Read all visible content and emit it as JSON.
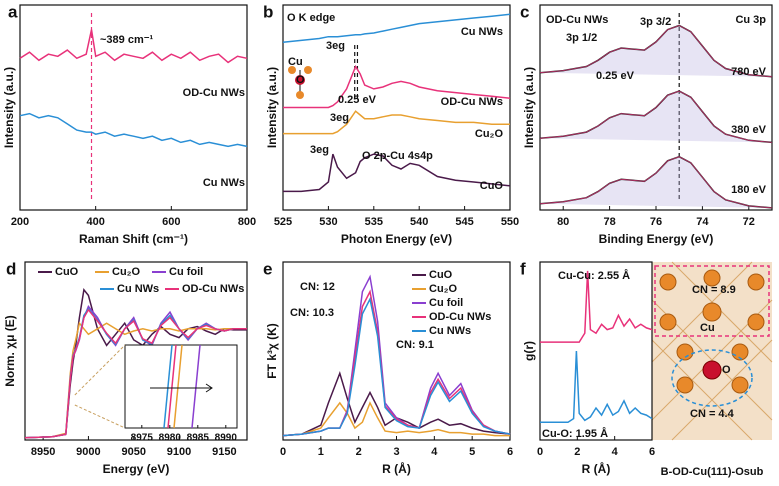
{
  "chart_data": [
    {
      "type": "line",
      "label": "a",
      "xlabel": "Raman Shift (cm⁻¹)",
      "ylabel": "Intensity (a.u.)",
      "xlim": [
        200,
        800
      ],
      "xticks": [
        200,
        400,
        600,
        800
      ],
      "ylim": [
        0,
        10
      ],
      "x": [
        200,
        225,
        250,
        275,
        300,
        325,
        350,
        375,
        389,
        400,
        425,
        450,
        475,
        500,
        525,
        550,
        575,
        600,
        625,
        650,
        675,
        700,
        725,
        750,
        775,
        800
      ],
      "vlines": [
        389
      ],
      "annotations": [
        "~389 cm⁻¹"
      ],
      "series": [
        {
          "name": "OD-Cu NWs",
          "color": "#e8327a",
          "values": [
            7.4,
            7.7,
            7.3,
            7.6,
            7.5,
            7.8,
            7.4,
            7.6,
            8.8,
            7.5,
            7.7,
            7.3,
            7.6,
            7.5,
            7.4,
            7.7,
            7.3,
            7.6,
            7.4,
            7.7,
            7.3,
            7.5,
            7.6,
            7.2,
            7.5,
            7.4
          ]
        },
        {
          "name": "Cu NWs",
          "color": "#2a8fd6",
          "values": [
            4.6,
            4.7,
            4.5,
            4.6,
            4.5,
            4.2,
            3.9,
            3.8,
            3.8,
            3.7,
            3.8,
            3.6,
            3.7,
            3.6,
            3.5,
            3.6,
            3.4,
            3.5,
            3.3,
            3.4,
            3.2,
            3.3,
            3.2,
            3.1,
            3.2,
            3.1
          ]
        }
      ]
    },
    {
      "type": "line",
      "label": "b",
      "xlabel": "Photon Energy (eV)",
      "ylabel": "Intensity (a.u.)",
      "xlim": [
        525,
        550
      ],
      "xticks": [
        525,
        530,
        535,
        540,
        545,
        550
      ],
      "ylim": [
        0,
        11
      ],
      "x": [
        525,
        527,
        529,
        530,
        530.5,
        531,
        532,
        533,
        533.5,
        534,
        535,
        536,
        537,
        538,
        539,
        540,
        542,
        544,
        546,
        548,
        550
      ],
      "vlines": [
        532.9,
        533.2
      ],
      "annotations": [
        "O K edge",
        "3eg",
        "0.25 eV",
        "3eg",
        "3eg",
        "O 2p-Cu 4s4p",
        "Cu",
        "O"
      ],
      "series": [
        {
          "name": "CuO",
          "color": "#4a1a4a",
          "values": [
            1.0,
            1.0,
            1.1,
            1.5,
            3.0,
            2.3,
            1.7,
            2.0,
            2.6,
            2.8,
            3.0,
            2.9,
            2.4,
            2.2,
            2.5,
            2.4,
            1.8,
            1.6,
            1.5,
            1.4,
            1.3
          ]
        },
        {
          "name": "Cu₂O",
          "color": "#e8a030",
          "values": [
            4.1,
            4.1,
            4.1,
            4.1,
            4.1,
            4.2,
            4.6,
            5.3,
            5.1,
            4.9,
            4.9,
            5.0,
            5.1,
            5.1,
            5.0,
            4.9,
            4.8,
            4.7,
            4.7,
            4.6,
            4.6
          ]
        },
        {
          "name": "OD-Cu NWs",
          "color": "#e8327a",
          "values": [
            5.5,
            5.5,
            5.5,
            5.5,
            5.6,
            5.8,
            6.5,
            7.7,
            7.3,
            6.7,
            6.5,
            6.6,
            6.8,
            6.9,
            6.8,
            6.6,
            6.4,
            6.3,
            6.2,
            6.1,
            6.0
          ]
        },
        {
          "name": "Cu NWs",
          "color": "#2a8fd6",
          "values": [
            9.0,
            9.1,
            9.2,
            9.3,
            9.3,
            9.3,
            9.35,
            9.4,
            9.4,
            9.45,
            9.5,
            9.6,
            9.7,
            9.8,
            9.9,
            10.0,
            10.1,
            10.2,
            10.3,
            10.4,
            10.5
          ]
        }
      ]
    },
    {
      "type": "line",
      "label": "c",
      "xlabel": "Binding Energy (eV)",
      "ylabel": "Intensity (a.u.)",
      "xlim": [
        81,
        71
      ],
      "xticks": [
        80,
        78,
        76,
        74,
        72
      ],
      "ylim": [
        0,
        10
      ],
      "x": [
        81,
        80,
        79,
        78.5,
        78,
        77.5,
        77,
        76.5,
        76,
        75.5,
        75,
        74.5,
        74,
        73.5,
        73,
        72,
        71
      ],
      "vlines": [
        75
      ],
      "annotations": [
        "OD-Cu NWs",
        "Cu 3p",
        "3p 1/2",
        "3p 3/2",
        "0.25 eV"
      ],
      "series": [
        {
          "name": "780 eV",
          "color": "#222222",
          "values": [
            6.7,
            6.8,
            7.0,
            7.3,
            7.7,
            7.9,
            7.85,
            7.8,
            8.2,
            8.8,
            9.0,
            8.7,
            8.0,
            7.3,
            6.9,
            6.6,
            6.5
          ]
        },
        {
          "name": "380 eV",
          "color": "#222222",
          "values": [
            3.5,
            3.6,
            3.8,
            4.1,
            4.5,
            4.7,
            4.65,
            4.6,
            5.0,
            5.6,
            5.8,
            5.5,
            4.8,
            4.1,
            3.7,
            3.4,
            3.3
          ]
        },
        {
          "name": "180 eV",
          "color": "#222222",
          "values": [
            0.3,
            0.4,
            0.6,
            0.9,
            1.3,
            1.5,
            1.45,
            1.4,
            1.8,
            2.4,
            2.6,
            2.3,
            1.6,
            0.9,
            0.5,
            0.2,
            0.1
          ]
        }
      ]
    },
    {
      "type": "line",
      "label": "d",
      "xlabel": "Energy (eV)",
      "ylabel": "Norm. χμ (E)",
      "xlim": [
        8930,
        9175
      ],
      "xticks": [
        8950,
        9000,
        9050,
        9100,
        9150
      ],
      "ylim": [
        0,
        1.6
      ],
      "x": [
        8930,
        8960,
        8975,
        8980,
        8983,
        8986,
        8990,
        8995,
        9000,
        9010,
        9020,
        9030,
        9040,
        9050,
        9060,
        9070,
        9080,
        9090,
        9100,
        9110,
        9120,
        9130,
        9140,
        9150,
        9160,
        9175
      ],
      "inset": {
        "xlim": [
          8972,
          8992
        ],
        "xticks": [
          8975,
          8980,
          8985,
          8990
        ]
      },
      "series": [
        {
          "name": "CuO",
          "color": "#4a1a4a",
          "values": [
            0.02,
            0.03,
            0.05,
            0.5,
            0.7,
            0.85,
            1.1,
            1.35,
            1.3,
            1.0,
            0.85,
            0.95,
            1.05,
            0.9,
            0.85,
            0.95,
            1.02,
            0.95,
            0.92,
            1.0,
            1.02,
            0.98,
            0.95,
            1.0,
            0.99,
            0.99
          ]
        },
        {
          "name": "Cu₂O",
          "color": "#e8a030",
          "values": [
            0.02,
            0.03,
            0.06,
            0.6,
            0.8,
            0.9,
            1.05,
            1.0,
            0.95,
            1.0,
            1.05,
            1.0,
            0.95,
            0.98,
            1.0,
            0.98,
            1.0,
            1.0,
            0.98,
            1.0,
            1.0,
            1.0,
            0.99,
            1.0,
            1.0,
            1.0
          ]
        },
        {
          "name": "Cu foil",
          "color": "#8a3fd0",
          "values": [
            0.02,
            0.03,
            0.05,
            0.55,
            0.75,
            0.8,
            0.9,
            1.1,
            1.2,
            1.1,
            0.95,
            0.85,
            1.0,
            1.1,
            0.9,
            0.85,
            1.05,
            1.15,
            1.0,
            0.9,
            1.0,
            1.05,
            1.0,
            0.98,
            1.0,
            1.0
          ]
        },
        {
          "name": "Cu NWs",
          "color": "#2a8fd6",
          "values": [
            0.02,
            0.03,
            0.05,
            0.56,
            0.76,
            0.82,
            0.92,
            1.12,
            1.18,
            1.08,
            0.95,
            0.86,
            1.0,
            1.08,
            0.9,
            0.86,
            1.04,
            1.12,
            1.0,
            0.91,
            1.0,
            1.04,
            1.0,
            0.98,
            1.0,
            1.0
          ]
        },
        {
          "name": "OD-Cu NWs",
          "color": "#e8327a",
          "values": [
            0.02,
            0.03,
            0.05,
            0.55,
            0.75,
            0.81,
            0.91,
            1.1,
            1.17,
            1.07,
            0.96,
            0.87,
            1.0,
            1.07,
            0.91,
            0.87,
            1.03,
            1.1,
            1.0,
            0.92,
            1.0,
            1.03,
            1.0,
            0.98,
            1.0,
            1.0
          ]
        }
      ]
    },
    {
      "type": "line",
      "label": "e",
      "xlabel": "R (Å)",
      "ylabel": "FT k³χ (K)",
      "xlim": [
        0,
        6
      ],
      "xticks": [
        0,
        1,
        2,
        3,
        4,
        5,
        6
      ],
      "ylim": [
        0,
        12
      ],
      "x": [
        0,
        0.5,
        1.0,
        1.2,
        1.5,
        1.7,
        1.9,
        2.1,
        2.3,
        2.5,
        2.7,
        3.0,
        3.3,
        3.6,
        3.9,
        4.1,
        4.4,
        4.7,
        5.0,
        5.3,
        5.6,
        6
      ],
      "annotations": [
        "CN: 12",
        "CN: 10.3",
        "CN: 9.1"
      ],
      "series": [
        {
          "name": "CuO",
          "color": "#4a1a4a",
          "values": [
            0.3,
            0.4,
            1.0,
            2.5,
            4.5,
            2.8,
            1.2,
            2.2,
            3.2,
            2.2,
            1.0,
            1.5,
            1.2,
            0.8,
            1.2,
            1.4,
            1.0,
            1.1,
            0.8,
            0.6,
            0.5,
            0.4
          ]
        },
        {
          "name": "Cu₂O",
          "color": "#e8a030",
          "values": [
            0.3,
            0.4,
            0.8,
            1.5,
            2.5,
            1.8,
            0.8,
            1.2,
            2.5,
            1.5,
            0.6,
            0.5,
            0.6,
            0.5,
            0.6,
            0.7,
            0.5,
            0.5,
            0.4,
            0.4,
            0.3,
            0.3
          ]
        },
        {
          "name": "Cu foil",
          "color": "#8a3fd0",
          "values": [
            0.3,
            0.4,
            0.6,
            0.8,
            0.8,
            2.0,
            6.0,
            10.0,
            11.0,
            8.0,
            2.5,
            1.5,
            1.0,
            0.8,
            3.5,
            4.5,
            3.0,
            3.8,
            2.0,
            1.0,
            0.6,
            0.4
          ]
        },
        {
          "name": "OD-Cu NWs",
          "color": "#e8327a",
          "values": [
            0.3,
            0.4,
            0.6,
            0.8,
            0.8,
            1.9,
            5.5,
            9.0,
            10.0,
            7.3,
            2.3,
            1.4,
            1.0,
            0.8,
            3.2,
            4.1,
            2.8,
            3.5,
            1.9,
            1.0,
            0.6,
            0.4
          ]
        },
        {
          "name": "Cu NWs",
          "color": "#2a8fd6",
          "values": [
            0.3,
            0.4,
            0.6,
            0.8,
            0.8,
            1.8,
            5.0,
            8.5,
            9.5,
            7.0,
            2.2,
            1.3,
            0.9,
            0.8,
            3.0,
            3.9,
            2.6,
            3.3,
            1.8,
            0.9,
            0.6,
            0.4
          ]
        }
      ]
    },
    {
      "type": "line",
      "label": "f",
      "xlabel": "R (Å)",
      "ylabel": "g(r)",
      "xlim": [
        0,
        6
      ],
      "xticks": [
        0,
        2,
        4,
        6
      ],
      "ylim": [
        0,
        10
      ],
      "x": [
        0,
        1,
        1.5,
        1.8,
        1.95,
        2.1,
        2.4,
        2.55,
        2.7,
        3.0,
        3.3,
        3.6,
        3.9,
        4.2,
        4.5,
        4.8,
        5.1,
        5.4,
        5.7,
        6
      ],
      "annotations": [
        "CN = 8.9",
        "Cu",
        "O",
        "CN = 4.4",
        "B-OD-Cu(111)-Osub"
      ],
      "series": [
        {
          "name": "Cu-Cu: 2.55 Å",
          "color": "#e8327a",
          "values": [
            5.5,
            5.5,
            5.5,
            5.5,
            5.5,
            5.5,
            6.0,
            9.5,
            6.2,
            6.0,
            6.5,
            6.2,
            6.3,
            7.0,
            6.4,
            6.8,
            6.3,
            6.5,
            6.3,
            6.2
          ]
        },
        {
          "name": "Cu-O: 1.95 Å",
          "color": "#2a8fd6",
          "values": [
            1,
            1,
            1,
            1.2,
            5.0,
            1.5,
            1.1,
            1.2,
            1.3,
            1.8,
            1.4,
            2.0,
            1.4,
            1.6,
            2.2,
            1.5,
            1.8,
            1.5,
            1.4,
            1.2
          ]
        }
      ]
    }
  ]
}
